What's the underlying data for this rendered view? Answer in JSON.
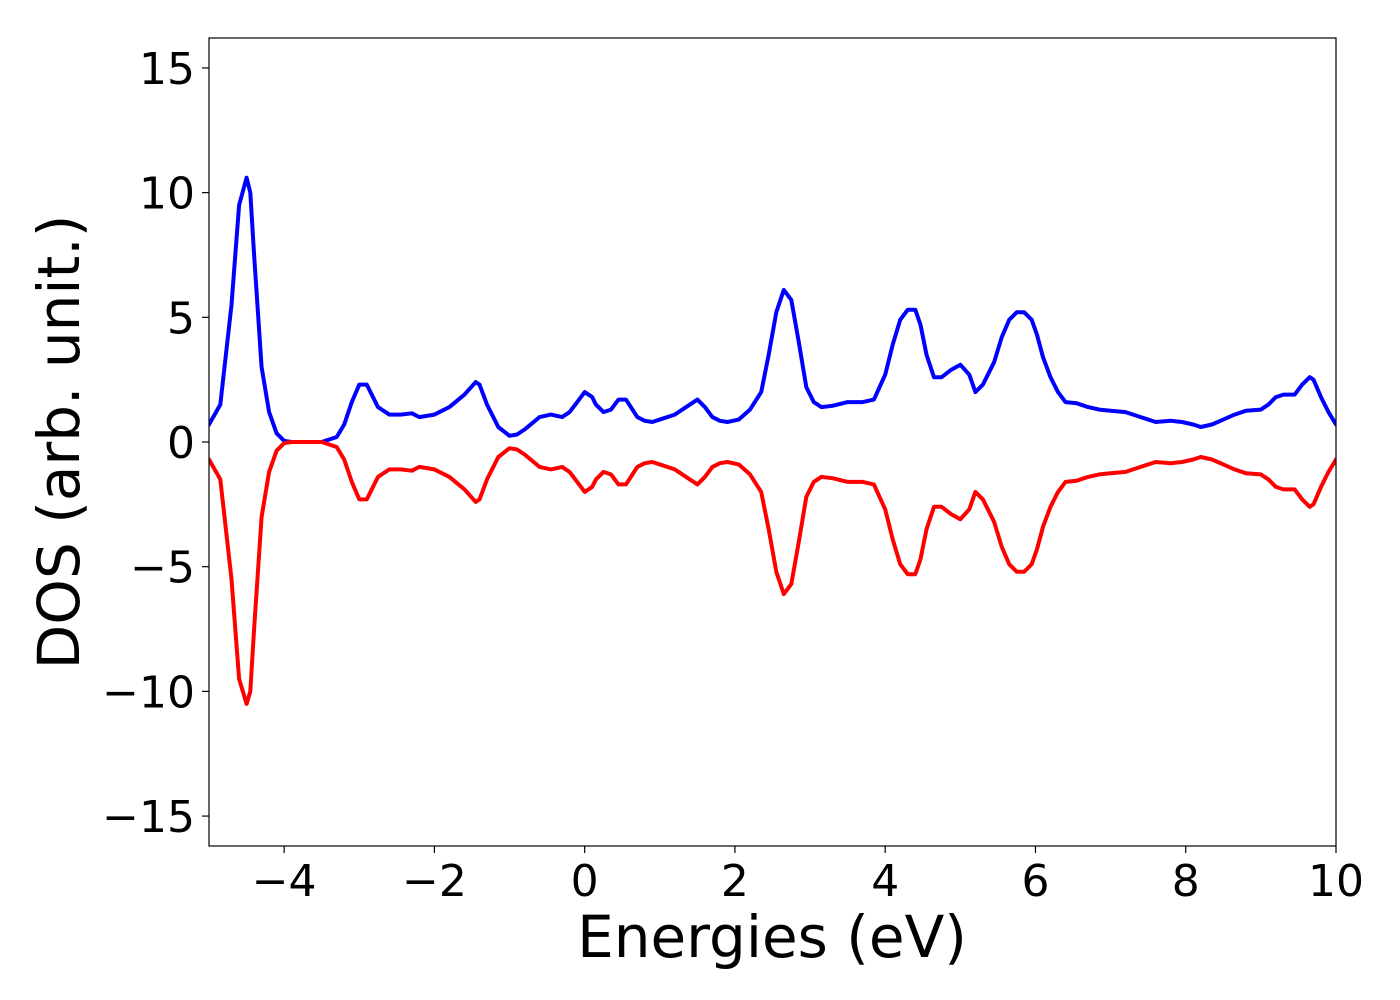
{
  "chart_data": {
    "type": "line",
    "title": "",
    "xlabel": "Energies (eV)",
    "ylabel": "DOS (arb. unit.)",
    "xlim": [
      -5,
      10
    ],
    "ylim": [
      -16.2,
      16.2
    ],
    "xticks": [
      -4,
      -2,
      0,
      2,
      4,
      6,
      8,
      10
    ],
    "xtick_labels": [
      "−4",
      "−2",
      "0",
      "2",
      "4",
      "6",
      "8",
      "10"
    ],
    "yticks": [
      15,
      10,
      5,
      0,
      -5,
      -10,
      -15
    ],
    "ytick_labels": [
      "15",
      "10",
      "5",
      "0",
      "−5",
      "−10",
      "−15"
    ],
    "grid": false,
    "legend": false,
    "series": [
      {
        "color": "#0000ff",
        "x": [
          -5.0,
          -4.85,
          -4.7,
          -4.6,
          -4.5,
          -4.45,
          -4.4,
          -4.3,
          -4.2,
          -4.1,
          -4.0,
          -3.9,
          -3.8,
          -3.7,
          -3.5,
          -3.3,
          -3.2,
          -3.1,
          -3.0,
          -2.9,
          -2.85,
          -2.75,
          -2.6,
          -2.45,
          -2.3,
          -2.2,
          -2.0,
          -1.8,
          -1.6,
          -1.45,
          -1.4,
          -1.3,
          -1.15,
          -1.0,
          -0.9,
          -0.8,
          -0.6,
          -0.45,
          -0.3,
          -0.2,
          -0.1,
          0.0,
          0.1,
          0.15,
          0.25,
          0.35,
          0.45,
          0.55,
          0.7,
          0.8,
          0.9,
          1.05,
          1.2,
          1.4,
          1.5,
          1.6,
          1.7,
          1.8,
          1.9,
          2.05,
          2.2,
          2.35,
          2.45,
          2.55,
          2.65,
          2.75,
          2.85,
          2.95,
          3.05,
          3.15,
          3.3,
          3.5,
          3.7,
          3.85,
          4.0,
          4.1,
          4.2,
          4.3,
          4.4,
          4.47,
          4.55,
          4.65,
          4.75,
          4.88,
          5.0,
          5.12,
          5.2,
          5.3,
          5.45,
          5.55,
          5.65,
          5.75,
          5.85,
          5.95,
          6.02,
          6.1,
          6.2,
          6.3,
          6.4,
          6.55,
          6.7,
          6.85,
          7.0,
          7.2,
          7.4,
          7.6,
          7.8,
          7.95,
          8.1,
          8.2,
          8.35,
          8.5,
          8.65,
          8.8,
          9.0,
          9.1,
          9.2,
          9.3,
          9.45,
          9.55,
          9.65,
          9.7,
          9.8,
          9.9,
          10.0
        ],
        "values": [
          0.7,
          1.5,
          5.5,
          9.5,
          10.6,
          10.0,
          7.5,
          3.0,
          1.2,
          0.35,
          0.05,
          0.0,
          0.0,
          0.0,
          0.0,
          0.2,
          0.7,
          1.6,
          2.3,
          2.3,
          2.0,
          1.4,
          1.1,
          1.1,
          1.15,
          1.0,
          1.1,
          1.4,
          1.9,
          2.4,
          2.3,
          1.5,
          0.6,
          0.25,
          0.3,
          0.5,
          1.0,
          1.1,
          1.0,
          1.2,
          1.6,
          2.0,
          1.8,
          1.5,
          1.2,
          1.3,
          1.7,
          1.7,
          1.0,
          0.85,
          0.8,
          0.95,
          1.1,
          1.5,
          1.7,
          1.4,
          1.0,
          0.85,
          0.8,
          0.9,
          1.3,
          2.0,
          3.5,
          5.2,
          6.1,
          5.7,
          4.0,
          2.2,
          1.6,
          1.4,
          1.45,
          1.6,
          1.6,
          1.7,
          2.7,
          3.9,
          4.9,
          5.3,
          5.3,
          4.7,
          3.5,
          2.6,
          2.6,
          2.9,
          3.1,
          2.7,
          2.0,
          2.3,
          3.2,
          4.2,
          4.9,
          5.2,
          5.2,
          4.9,
          4.3,
          3.4,
          2.6,
          2.0,
          1.6,
          1.55,
          1.4,
          1.3,
          1.25,
          1.2,
          1.0,
          0.8,
          0.85,
          0.8,
          0.7,
          0.6,
          0.7,
          0.9,
          1.1,
          1.25,
          1.3,
          1.5,
          1.8,
          1.9,
          1.9,
          2.3,
          2.6,
          2.5,
          1.8,
          1.2,
          0.7
        ]
      },
      {
        "color": "#ff0000",
        "x": [
          -5.0,
          -4.85,
          -4.7,
          -4.6,
          -4.5,
          -4.45,
          -4.4,
          -4.3,
          -4.2,
          -4.1,
          -4.0,
          -3.9,
          -3.8,
          -3.7,
          -3.5,
          -3.3,
          -3.2,
          -3.1,
          -3.0,
          -2.9,
          -2.85,
          -2.75,
          -2.6,
          -2.45,
          -2.3,
          -2.2,
          -2.0,
          -1.8,
          -1.6,
          -1.45,
          -1.4,
          -1.3,
          -1.15,
          -1.0,
          -0.9,
          -0.8,
          -0.6,
          -0.45,
          -0.3,
          -0.2,
          -0.1,
          0.0,
          0.1,
          0.15,
          0.25,
          0.35,
          0.45,
          0.55,
          0.7,
          0.8,
          0.9,
          1.05,
          1.2,
          1.4,
          1.5,
          1.6,
          1.7,
          1.8,
          1.9,
          2.05,
          2.2,
          2.35,
          2.45,
          2.55,
          2.65,
          2.75,
          2.85,
          2.95,
          3.05,
          3.15,
          3.3,
          3.5,
          3.7,
          3.85,
          4.0,
          4.1,
          4.2,
          4.3,
          4.4,
          4.47,
          4.55,
          4.65,
          4.75,
          4.88,
          5.0,
          5.12,
          5.2,
          5.3,
          5.45,
          5.55,
          5.65,
          5.75,
          5.85,
          5.95,
          6.02,
          6.1,
          6.2,
          6.3,
          6.4,
          6.55,
          6.7,
          6.85,
          7.0,
          7.2,
          7.4,
          7.6,
          7.8,
          7.95,
          8.1,
          8.2,
          8.35,
          8.5,
          8.65,
          8.8,
          9.0,
          9.1,
          9.2,
          9.3,
          9.45,
          9.55,
          9.65,
          9.7,
          9.8,
          9.9,
          10.0
        ],
        "values": [
          -0.7,
          -1.5,
          -5.5,
          -9.5,
          -10.5,
          -10.0,
          -7.5,
          -3.0,
          -1.2,
          -0.35,
          -0.05,
          0.0,
          0.0,
          0.0,
          0.0,
          -0.2,
          -0.7,
          -1.6,
          -2.3,
          -2.3,
          -2.0,
          -1.4,
          -1.1,
          -1.1,
          -1.15,
          -1.0,
          -1.1,
          -1.4,
          -1.9,
          -2.4,
          -2.3,
          -1.5,
          -0.6,
          -0.25,
          -0.3,
          -0.5,
          -1.0,
          -1.1,
          -1.0,
          -1.2,
          -1.6,
          -2.0,
          -1.8,
          -1.5,
          -1.2,
          -1.3,
          -1.7,
          -1.7,
          -1.0,
          -0.85,
          -0.8,
          -0.95,
          -1.1,
          -1.5,
          -1.7,
          -1.4,
          -1.0,
          -0.85,
          -0.8,
          -0.9,
          -1.3,
          -2.0,
          -3.5,
          -5.2,
          -6.1,
          -5.7,
          -4.0,
          -2.2,
          -1.6,
          -1.4,
          -1.45,
          -1.6,
          -1.6,
          -1.7,
          -2.7,
          -3.9,
          -4.9,
          -5.3,
          -5.3,
          -4.7,
          -3.5,
          -2.6,
          -2.6,
          -2.9,
          -3.1,
          -2.7,
          -2.0,
          -2.3,
          -3.2,
          -4.2,
          -4.9,
          -5.2,
          -5.2,
          -4.9,
          -4.3,
          -3.4,
          -2.6,
          -2.0,
          -1.6,
          -1.55,
          -1.4,
          -1.3,
          -1.25,
          -1.2,
          -1.0,
          -0.8,
          -0.85,
          -0.8,
          -0.7,
          -0.6,
          -0.7,
          -0.9,
          -1.1,
          -1.25,
          -1.3,
          -1.5,
          -1.8,
          -1.9,
          -1.9,
          -2.3,
          -2.6,
          -2.5,
          -1.8,
          -1.2,
          -0.7
        ]
      }
    ]
  }
}
